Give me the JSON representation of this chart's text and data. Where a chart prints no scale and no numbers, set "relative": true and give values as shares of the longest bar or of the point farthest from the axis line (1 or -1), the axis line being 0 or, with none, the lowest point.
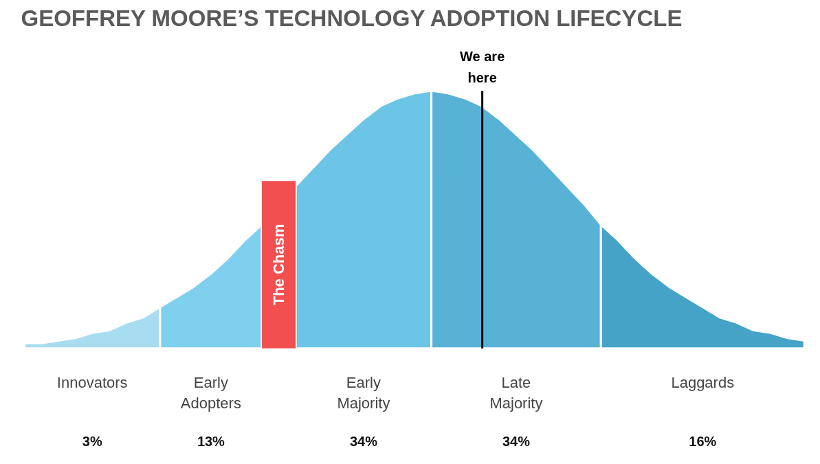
{
  "chart_data": {
    "type": "area",
    "relative": true,
    "title": "GEOFFREY MOORE’S TECHNOLOGY ADOPTION LIFECYCLE",
    "categories": [
      null,
      null,
      null,
      null,
      null,
      null,
      null,
      null,
      null,
      null,
      null,
      null,
      null,
      null,
      null,
      null,
      null,
      null,
      null,
      null,
      null,
      null,
      null,
      null,
      null,
      null,
      null,
      null,
      null,
      null,
      null,
      null,
      null,
      null,
      null,
      null,
      null,
      null,
      null,
      null,
      null,
      null,
      null,
      null,
      null,
      null,
      null
    ],
    "series": [
      {
        "name": "Innovators",
        "color": "#a8dcf0",
        "values": [
          0.02,
          0.02,
          0.03,
          0.04,
          0.06,
          0.07,
          0.1,
          0.12,
          0.16,
          null,
          null,
          null,
          null,
          null,
          null,
          null,
          null,
          null,
          null,
          null,
          null,
          null,
          null,
          null,
          null,
          null,
          null,
          null,
          null,
          null,
          null,
          null,
          null,
          null,
          null,
          null,
          null,
          null,
          null,
          null,
          null,
          null,
          null,
          null,
          null,
          null,
          null
        ]
      },
      {
        "name": "Early\nAdopters",
        "color": "#7fd0ee",
        "values": [
          null,
          null,
          null,
          null,
          null,
          null,
          null,
          null,
          0.16,
          0.2,
          0.24,
          0.29,
          0.35,
          0.42,
          0.48,
          null,
          null,
          null,
          null,
          null,
          null,
          null,
          null,
          null,
          null,
          null,
          null,
          null,
          null,
          null,
          null,
          null,
          null,
          null,
          null,
          null,
          null,
          null,
          null,
          null,
          null,
          null,
          null,
          null,
          null,
          null,
          null
        ]
      },
      {
        "name": "Early\nMajority",
        "color": "#6cc5e6",
        "values": [
          null,
          null,
          null,
          null,
          null,
          null,
          null,
          null,
          null,
          null,
          null,
          null,
          null,
          null,
          null,
          null,
          0.63,
          0.7,
          0.77,
          0.83,
          0.89,
          0.94,
          0.97,
          0.99,
          1.0,
          null,
          null,
          null,
          null,
          null,
          null,
          null,
          null,
          null,
          null,
          null,
          null,
          null,
          null,
          null,
          null,
          null,
          null,
          null,
          null,
          null,
          null
        ]
      },
      {
        "name": "Late\nMajority",
        "color": "#57b2d6",
        "values": [
          null,
          null,
          null,
          null,
          null,
          null,
          null,
          null,
          null,
          null,
          null,
          null,
          null,
          null,
          null,
          null,
          null,
          null,
          null,
          null,
          null,
          null,
          null,
          null,
          1.0,
          0.99,
          0.97,
          0.94,
          0.89,
          0.83,
          0.77,
          0.7,
          0.63,
          0.56,
          0.48,
          null,
          null,
          null,
          null,
          null,
          null,
          null,
          null,
          null,
          null,
          null,
          null
        ]
      },
      {
        "name": "Laggards",
        "color": "#44a3c6",
        "values": [
          null,
          null,
          null,
          null,
          null,
          null,
          null,
          null,
          null,
          null,
          null,
          null,
          null,
          null,
          null,
          null,
          null,
          null,
          null,
          null,
          null,
          null,
          null,
          null,
          null,
          null,
          null,
          null,
          null,
          null,
          null,
          null,
          null,
          null,
          0.48,
          0.42,
          0.35,
          0.29,
          0.24,
          0.2,
          0.16,
          0.12,
          0.1,
          0.07,
          0.06,
          0.04,
          0.03
        ]
      }
    ],
    "annotations": [
      "3%",
      "13%",
      "34%",
      "34%",
      "16%",
      "The Chasm",
      "We are\nhere"
    ]
  }
}
